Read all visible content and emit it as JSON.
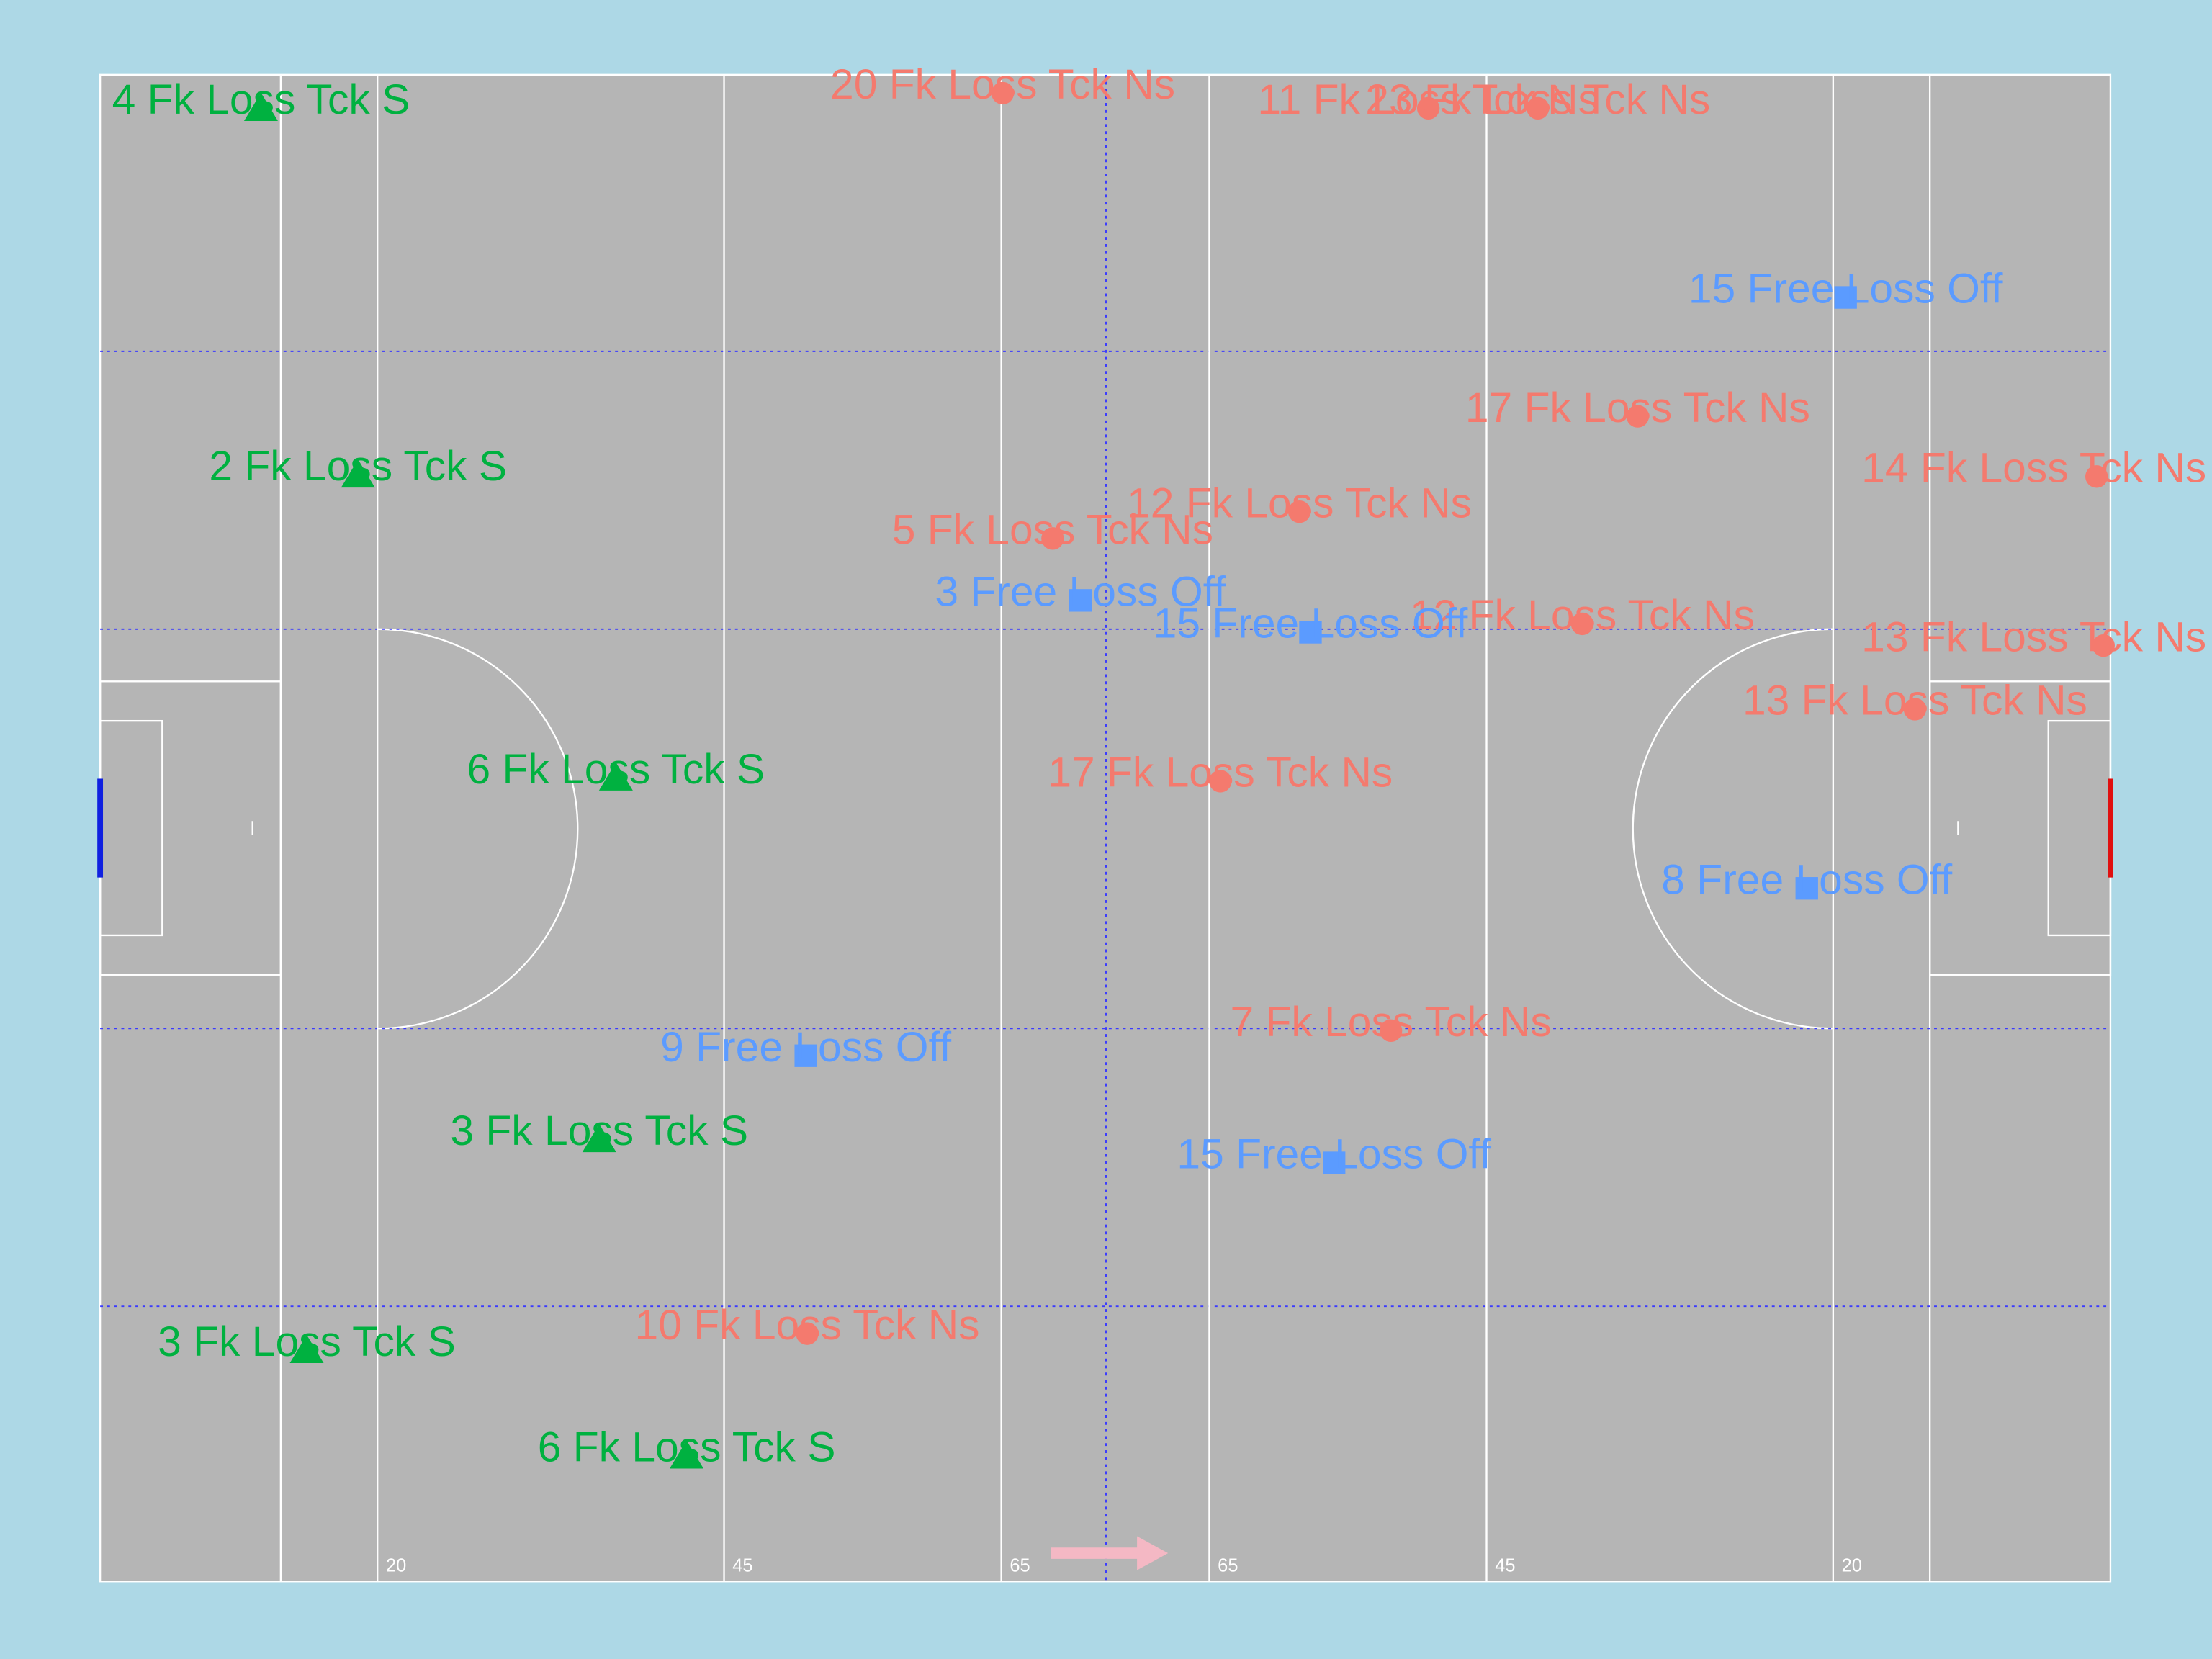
{
  "chart_data": {
    "type": "scatter",
    "xlim": [
      0,
      145
    ],
    "ylim": [
      0,
      90
    ],
    "xticks": [
      20,
      45,
      65,
      {
        "value": 80,
        "label": "65"
      },
      {
        "value": 100,
        "label": "45"
      },
      {
        "value": 125,
        "label": "20"
      }
    ],
    "series": [
      {
        "color": "#00b140",
        "marker": "triangle",
        "x": [
          11.6,
          18.6,
          37.2,
          36.0,
          14.9,
          42.3
        ],
        "values": [
          2.0,
          23.9,
          42.0,
          63.6,
          76.2,
          82.5
        ],
        "labels": [
          "4 Fk Loss Tck S",
          "2 Fk Loss Tck S",
          "6 Fk Loss Tck S",
          "3 Fk Loss Tck S",
          "3 Fk Loss Tck S",
          "6 Fk Loss Tck S"
        ]
      },
      {
        "color": "#f47a6e",
        "marker": "circle",
        "x": [
          65.1,
          95.8,
          103.7,
          110.9,
          86.5,
          144.0,
          68.7,
          106.9,
          144.5,
          130.9,
          80.8,
          93.1,
          51.0
        ],
        "values": [
          1.1,
          2.0,
          2.0,
          20.4,
          26.1,
          24.0,
          27.7,
          32.8,
          34.1,
          37.9,
          42.2,
          57.1,
          75.2
        ],
        "labels": [
          "20 Fk Loss Tck Ns",
          "11 Fk Loss Tck Ns",
          "23 Fk Loss Tck Ns",
          "17 Fk Loss Tck Ns",
          "12 Fk Loss Tck Ns",
          "14 Fk Loss Tck Ns",
          "5 Fk Loss Tck Ns",
          "12 Fk Loss Tck Ns",
          "13 Fk Loss Tck Ns",
          "13 Fk Loss Tck Ns",
          "17 Fk Loss Tck Ns",
          "7 Fk Loss Tck Ns",
          "10 Fk Loss Tck Ns"
        ]
      },
      {
        "color": "#5b9bff",
        "marker": "square",
        "x": [
          125.9,
          70.7,
          87.3,
          123.1,
          50.9,
          89.0
        ],
        "values": [
          13.3,
          31.4,
          33.3,
          48.6,
          58.6,
          65.0
        ],
        "labels": [
          "15 Free Loss Off",
          "3 Free Loss Off",
          "15 Free Loss Off",
          "8 Free Loss Off",
          "9 Free Loss Off",
          "15 Free Loss Off"
        ]
      }
    ]
  }
}
